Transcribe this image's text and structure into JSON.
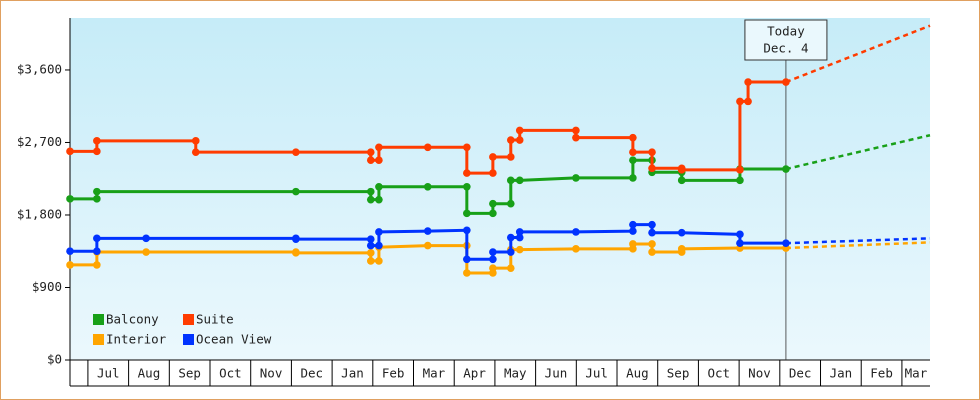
{
  "chart_data": {
    "type": "line",
    "xlim": [
      -0.44,
      20.69
    ],
    "xticks": [
      {
        "value": 0,
        "label": "Jul"
      },
      {
        "value": 1,
        "label": "Aug"
      },
      {
        "value": 2,
        "label": "Sep"
      },
      {
        "value": 3,
        "label": "Oct"
      },
      {
        "value": 4,
        "label": "Nov"
      },
      {
        "value": 5,
        "label": "Dec"
      },
      {
        "value": 6,
        "label": "Jan"
      },
      {
        "value": 7,
        "label": "Feb"
      },
      {
        "value": 8,
        "label": "Mar"
      },
      {
        "value": 9,
        "label": "Apr"
      },
      {
        "value": 10,
        "label": "May"
      },
      {
        "value": 11,
        "label": "Jun"
      },
      {
        "value": 12,
        "label": "Jul"
      },
      {
        "value": 13,
        "label": "Aug"
      },
      {
        "value": 14,
        "label": "Sep"
      },
      {
        "value": 15,
        "label": "Oct"
      },
      {
        "value": 16,
        "label": "Nov"
      },
      {
        "value": 17,
        "label": "Dec"
      },
      {
        "value": 18,
        "label": "Jan"
      },
      {
        "value": 19,
        "label": "Feb"
      },
      {
        "value": 20,
        "label": "Mar"
      }
    ],
    "ylim": [
      0,
      4245
    ],
    "yticks": [
      {
        "value": 0,
        "label": "$0"
      },
      {
        "value": 900,
        "label": "$900"
      },
      {
        "value": 1800,
        "label": "$1,800"
      },
      {
        "value": 2700,
        "label": "$2,700"
      },
      {
        "value": 3600,
        "label": "$3,600"
      }
    ],
    "today": {
      "x": 17.15,
      "label": [
        "Today",
        "Dec. 4"
      ]
    },
    "series": [
      {
        "name": "Balcony",
        "color": "#18a018",
        "x": [
          -0.44,
          0.22,
          0.22,
          5.11,
          6.95,
          6.95,
          7.15,
          7.15,
          8.35,
          9.31,
          9.31,
          9.95,
          9.95,
          10.39,
          10.39,
          10.61,
          11.99,
          13.39,
          13.39,
          13.86,
          13.86,
          14.59,
          14.59,
          16.02,
          16.02,
          17.15
        ],
        "values": [
          2000,
          2000,
          2090,
          2090,
          2090,
          1990,
          1990,
          2150,
          2150,
          2150,
          1820,
          1820,
          1940,
          1940,
          2230,
          2230,
          2260,
          2260,
          2480,
          2480,
          2330,
          2330,
          2230,
          2230,
          2370,
          2370
        ],
        "forecast_x": [
          17.15,
          20.69
        ],
        "forecast_values": [
          2370,
          2790
        ]
      },
      {
        "name": "Suite",
        "color": "#ff3c00",
        "x": [
          -0.44,
          0.22,
          0.22,
          2.65,
          2.65,
          5.11,
          6.95,
          6.95,
          7.15,
          7.15,
          8.35,
          9.31,
          9.31,
          9.95,
          9.95,
          10.39,
          10.39,
          10.61,
          10.61,
          11.99,
          11.99,
          13.39,
          13.39,
          13.86,
          13.86,
          14.59,
          14.59,
          16.02,
          16.02,
          16.22,
          16.22,
          17.15
        ],
        "values": [
          2590,
          2590,
          2720,
          2720,
          2580,
          2580,
          2580,
          2480,
          2480,
          2640,
          2640,
          2640,
          2320,
          2320,
          2520,
          2520,
          2730,
          2730,
          2850,
          2850,
          2760,
          2760,
          2580,
          2580,
          2380,
          2380,
          2360,
          2360,
          3210,
          3210,
          3450,
          3450
        ],
        "forecast_x": [
          17.15,
          20.69
        ],
        "forecast_values": [
          3450,
          4150
        ]
      },
      {
        "name": "Interior",
        "color": "#ffa500",
        "x": [
          -0.44,
          0.22,
          0.22,
          1.43,
          5.11,
          5.11,
          6.95,
          6.95,
          7.15,
          7.15,
          8.35,
          9.31,
          9.31,
          9.95,
          9.95,
          10.39,
          10.39,
          10.61,
          11.99,
          13.39,
          13.39,
          13.86,
          13.86,
          14.59,
          14.59,
          16.02,
          17.15
        ],
        "values": [
          1180,
          1180,
          1340,
          1340,
          1340,
          1330,
          1330,
          1230,
          1230,
          1400,
          1420,
          1420,
          1080,
          1080,
          1140,
          1140,
          1370,
          1370,
          1380,
          1380,
          1440,
          1440,
          1340,
          1340,
          1380,
          1390,
          1390
        ],
        "forecast_x": [
          17.15,
          20.69
        ],
        "forecast_values": [
          1390,
          1460
        ]
      },
      {
        "name": "Ocean View",
        "color": "#0033ff",
        "x": [
          -0.44,
          0.22,
          0.22,
          1.43,
          5.11,
          5.11,
          6.95,
          6.95,
          7.15,
          7.15,
          8.35,
          9.31,
          9.31,
          9.95,
          9.95,
          10.39,
          10.39,
          10.61,
          10.61,
          11.99,
          13.39,
          13.39,
          13.86,
          13.86,
          14.59,
          16.02,
          16.02,
          17.15
        ],
        "values": [
          1350,
          1350,
          1510,
          1510,
          1510,
          1500,
          1500,
          1420,
          1420,
          1590,
          1600,
          1610,
          1250,
          1250,
          1340,
          1340,
          1520,
          1520,
          1590,
          1590,
          1600,
          1680,
          1680,
          1580,
          1580,
          1560,
          1450,
          1450
        ],
        "forecast_x": [
          17.15,
          20.69
        ],
        "forecast_values": [
          1450,
          1510
        ]
      }
    ]
  }
}
